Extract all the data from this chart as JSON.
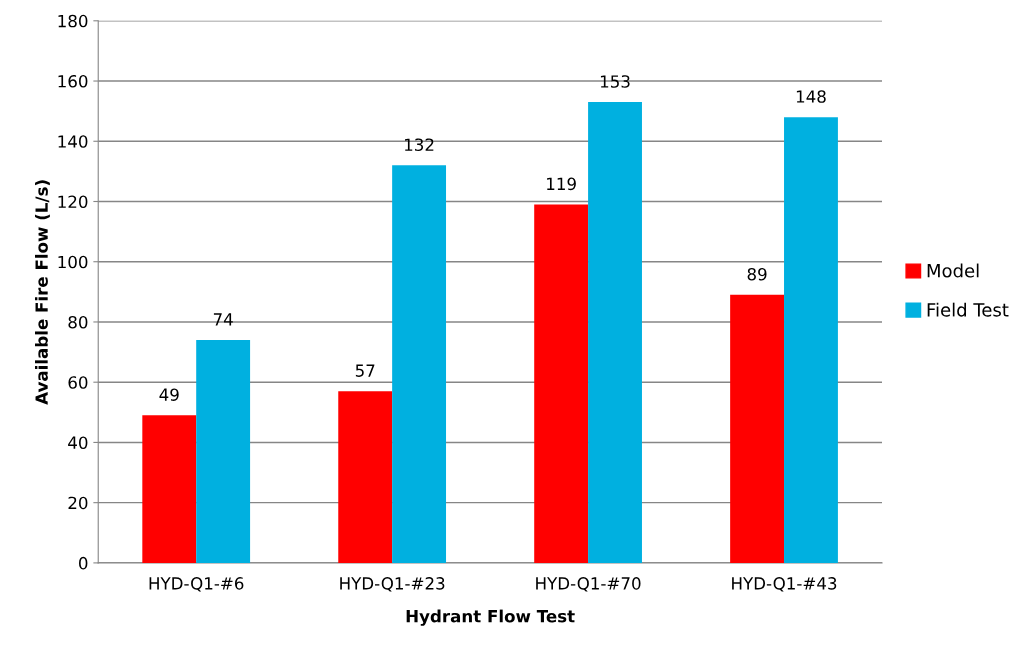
{
  "chart_data": {
    "type": "bar",
    "xlabel": "Hydrant Flow Test",
    "ylabel": "Available Fire Flow (L/s)",
    "categories": [
      "HYD-Q1-#6",
      "HYD-Q1-#23",
      "HYD-Q1-#70",
      "HYD-Q1-#43"
    ],
    "series": [
      {
        "name": "Model",
        "color": "#ff0000",
        "values": [
          49,
          57,
          119,
          89
        ]
      },
      {
        "name": "Field Test",
        "color": "#00b0e0",
        "values": [
          74,
          132,
          153,
          148
        ]
      }
    ],
    "ylim": [
      0,
      180
    ],
    "yticks": [
      0,
      20,
      40,
      60,
      80,
      100,
      120,
      140,
      160,
      180
    ],
    "grid": "y",
    "legend": "right",
    "data_labels": true
  }
}
